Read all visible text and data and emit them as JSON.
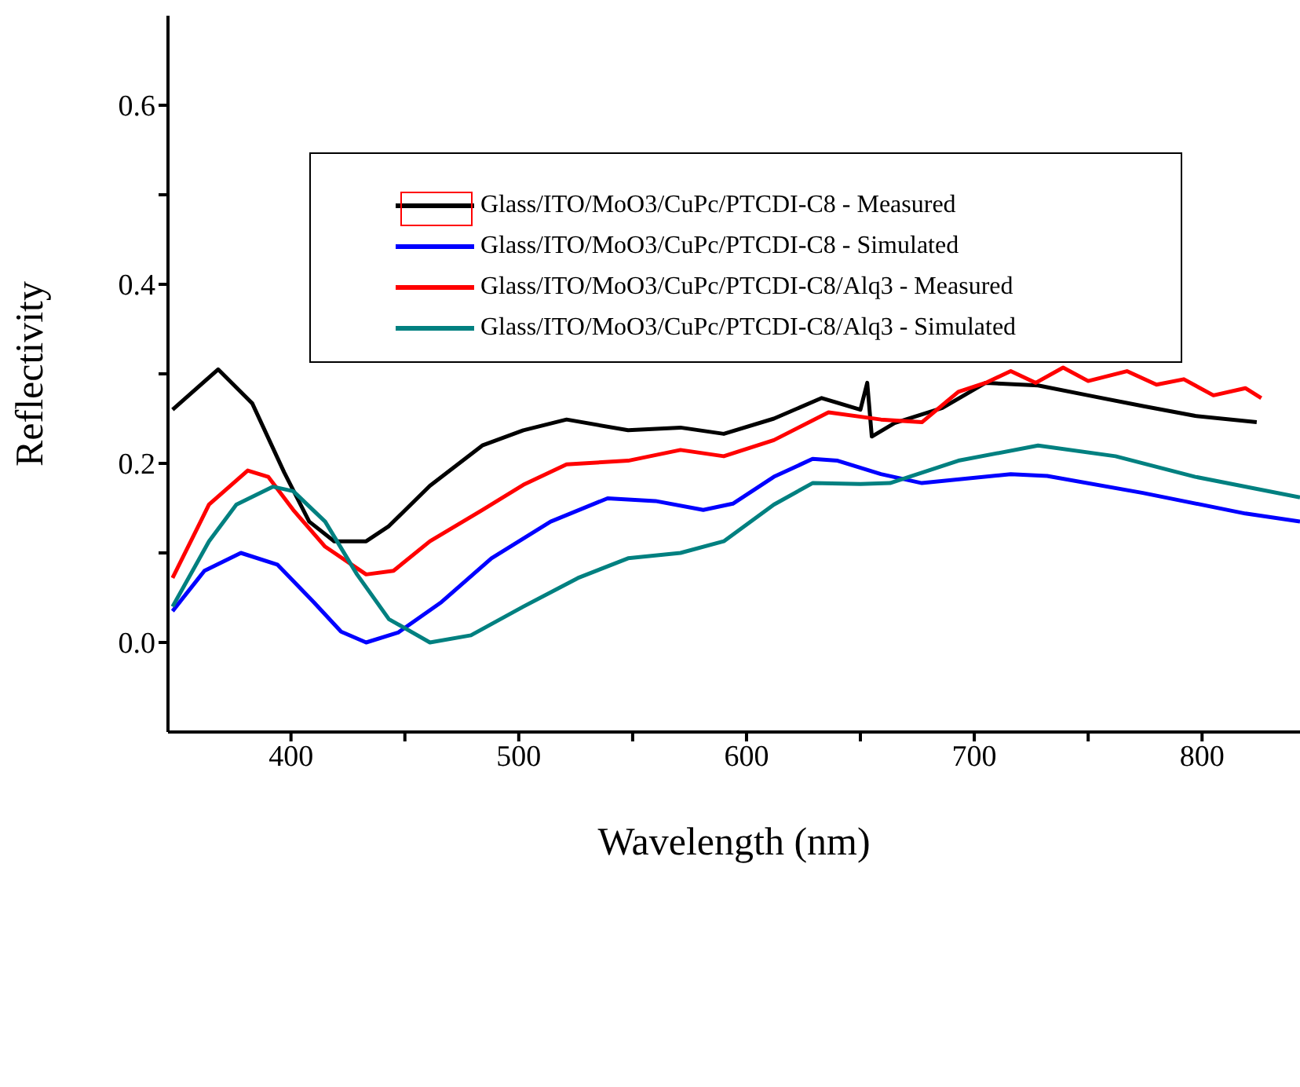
{
  "chart_data": {
    "type": "line",
    "xlabel": "Wavelength (nm)",
    "ylabel": "Reflectivity",
    "xlim": [
      346,
      843
    ],
    "ylim": [
      -0.1,
      0.7
    ],
    "xticks": [
      400,
      {
        "value": 450,
        "label": null
      },
      500,
      {
        "value": 550,
        "label": null
      },
      600,
      {
        "value": 650,
        "label": null
      },
      700,
      {
        "value": 750,
        "label": null
      },
      800
    ],
    "yticks": [
      {
        "value": 0,
        "label": "0.0"
      },
      {
        "value": 0.1,
        "label": null
      },
      0.2,
      {
        "value": 0.3,
        "label": null
      },
      0.4,
      {
        "value": 0.5,
        "label": null
      },
      0.6
    ],
    "legend": "top",
    "marker": "none",
    "line_style": "solid",
    "series": [
      {
        "name": "Glass/ITO/MoO3/CuPc/PTCDI-C8 - Measured",
        "color": "#000000",
        "x": [
          348,
          368,
          383,
          397,
          408,
          419,
          433,
          443,
          461,
          484,
          502,
          521,
          548,
          571,
          590,
          612,
          633,
          650,
          653,
          655,
          665,
          686,
          705,
          728,
          750,
          774,
          797,
          824
        ],
        "values": [
          0.26,
          0.305,
          0.267,
          0.19,
          0.135,
          0.113,
          0.113,
          0.13,
          0.175,
          0.22,
          0.237,
          0.249,
          0.237,
          0.24,
          0.233,
          0.25,
          0.273,
          0.26,
          0.29,
          0.23,
          0.245,
          0.262,
          0.29,
          0.287,
          0.276,
          0.264,
          0.253,
          0.246
        ]
      },
      {
        "name": "Glass/ITO/MoO3/CuPc/PTCDI-C8 - Simulated",
        "color": "#0000ff",
        "x": [
          348,
          362,
          378,
          394,
          410,
          422,
          433,
          447,
          466,
          488,
          514,
          539,
          560,
          581,
          594,
          612,
          629,
          640,
          659,
          677,
          716,
          732,
          774,
          819,
          843
        ],
        "values": [
          0.035,
          0.08,
          0.1,
          0.087,
          0.045,
          0.012,
          0.0,
          0.011,
          0.045,
          0.094,
          0.135,
          0.161,
          0.158,
          0.148,
          0.155,
          0.185,
          0.205,
          0.203,
          0.188,
          0.178,
          0.188,
          0.186,
          0.167,
          0.144,
          0.135
        ]
      },
      {
        "name": "Glass/ITO/MoO3/CuPc/PTCDI-C8/Alq3 - Measured",
        "color": "#ff0000",
        "x": [
          348,
          364,
          381,
          390,
          401,
          415,
          433,
          445,
          461,
          484,
          502,
          521,
          548,
          571,
          590,
          612,
          636,
          659,
          677,
          693,
          705,
          716,
          727,
          739,
          750,
          767,
          780,
          792,
          805,
          819,
          826
        ],
        "values": [
          0.072,
          0.154,
          0.192,
          0.185,
          0.148,
          0.107,
          0.076,
          0.08,
          0.113,
          0.148,
          0.176,
          0.199,
          0.203,
          0.215,
          0.208,
          0.226,
          0.257,
          0.249,
          0.246,
          0.28,
          0.29,
          0.303,
          0.29,
          0.307,
          0.292,
          0.303,
          0.288,
          0.294,
          0.276,
          0.284,
          0.273
        ]
      },
      {
        "name": "Glass/ITO/MoO3/CuPc/PTCDI-C8/Alq3 - Simulated",
        "color": "#008080",
        "x": [
          348,
          364,
          376,
          392,
          401,
          415,
          429,
          443,
          461,
          479,
          502,
          526,
          548,
          571,
          590,
          612,
          629,
          650,
          663,
          693,
          728,
          762,
          797,
          843
        ],
        "values": [
          0.04,
          0.113,
          0.154,
          0.174,
          0.169,
          0.135,
          0.076,
          0.026,
          0.0,
          0.008,
          0.04,
          0.072,
          0.094,
          0.1,
          0.113,
          0.154,
          0.178,
          0.177,
          0.178,
          0.203,
          0.22,
          0.208,
          0.185,
          0.162
        ]
      }
    ]
  }
}
